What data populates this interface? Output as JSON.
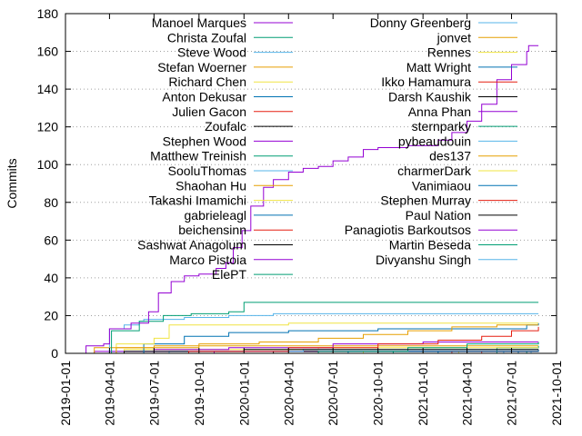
{
  "chart_data": {
    "type": "line",
    "title": "",
    "xlabel": "",
    "ylabel": "Commits",
    "xlim": [
      "2019-01-01",
      "2021-10-01"
    ],
    "ylim": [
      0,
      180
    ],
    "yticks": [
      0,
      20,
      40,
      60,
      80,
      100,
      120,
      140,
      160,
      180
    ],
    "xticks": [
      "2019-01-01",
      "2019-04-01",
      "2019-07-01",
      "2019-10-01",
      "2020-01-01",
      "2020-04-01",
      "2020-07-01",
      "2020-10-01",
      "2021-01-01",
      "2021-04-01",
      "2021-07-01",
      "2021-10-01"
    ],
    "grid": "horizontal dotted",
    "legend_position": "top (two columns)",
    "series": [
      {
        "name": "Manoel Marques",
        "color": "#9400d3",
        "points": [
          [
            "2019-02-01",
            0
          ],
          [
            "2019-02-12",
            4
          ],
          [
            "2019-03-20",
            5
          ],
          [
            "2019-04-01",
            13
          ],
          [
            "2019-05-15",
            16
          ],
          [
            "2019-06-20",
            22
          ],
          [
            "2019-07-10",
            32
          ],
          [
            "2019-08-05",
            38
          ],
          [
            "2019-09-01",
            41
          ],
          [
            "2019-10-01",
            42
          ],
          [
            "2019-11-05",
            45
          ],
          [
            "2019-11-25",
            48
          ],
          [
            "2019-12-10",
            56
          ],
          [
            "2019-12-28",
            65
          ],
          [
            "2020-01-15",
            78
          ],
          [
            "2020-02-10",
            88
          ],
          [
            "2020-03-01",
            92
          ],
          [
            "2020-04-01",
            96
          ],
          [
            "2020-05-01",
            98
          ],
          [
            "2020-06-01",
            99
          ],
          [
            "2020-07-01",
            102
          ],
          [
            "2020-08-01",
            104
          ],
          [
            "2020-09-01",
            108
          ],
          [
            "2020-10-01",
            109
          ],
          [
            "2020-12-01",
            110
          ],
          [
            "2021-02-01",
            113
          ],
          [
            "2021-03-01",
            117
          ],
          [
            "2021-04-01",
            123
          ],
          [
            "2021-05-01",
            132
          ],
          [
            "2021-06-01",
            145
          ],
          [
            "2021-07-01",
            153
          ],
          [
            "2021-08-01",
            160
          ],
          [
            "2021-08-05",
            163
          ],
          [
            "2021-08-25",
            163
          ]
        ]
      },
      {
        "name": "Christa Zoufal",
        "color": "#009e73",
        "points": [
          [
            "2019-04-05",
            0
          ],
          [
            "2019-04-05",
            12
          ],
          [
            "2019-06-01",
            17
          ],
          [
            "2019-07-20",
            20
          ],
          [
            "2019-09-15",
            21
          ],
          [
            "2019-12-01",
            22
          ],
          [
            "2020-01-01",
            27
          ],
          [
            "2021-08-25",
            27
          ]
        ]
      },
      {
        "name": "Steve Wood",
        "color": "#56b4e9",
        "points": [
          [
            "2019-04-01",
            0
          ],
          [
            "2019-04-01",
            13
          ],
          [
            "2019-05-01",
            15
          ],
          [
            "2019-06-01",
            17
          ],
          [
            "2019-06-10",
            18
          ],
          [
            "2019-09-01",
            19
          ],
          [
            "2019-12-01",
            20
          ],
          [
            "2020-03-01",
            21
          ],
          [
            "2020-05-01",
            21
          ],
          [
            "2021-08-25",
            21
          ]
        ]
      },
      {
        "name": "Stefan Woerner",
        "color": "#e69f00",
        "points": [
          [
            "2019-04-01",
            0
          ],
          [
            "2019-04-15",
            3
          ],
          [
            "2019-10-01",
            5
          ],
          [
            "2020-02-01",
            6
          ],
          [
            "2020-06-01",
            8
          ],
          [
            "2020-09-01",
            10
          ],
          [
            "2020-12-01",
            12
          ],
          [
            "2021-03-01",
            14
          ],
          [
            "2021-06-01",
            15
          ],
          [
            "2021-08-25",
            15
          ]
        ]
      },
      {
        "name": "Richard Chen",
        "color": "#f0e442",
        "points": [
          [
            "2019-04-01",
            0
          ],
          [
            "2019-04-15",
            5
          ],
          [
            "2019-07-01",
            8
          ],
          [
            "2019-08-01",
            15
          ],
          [
            "2019-12-01",
            15
          ],
          [
            "2020-04-01",
            16
          ],
          [
            "2021-08-25",
            16
          ]
        ]
      },
      {
        "name": "Anton Dekusar",
        "color": "#0072b2",
        "points": [
          [
            "2019-06-01",
            0
          ],
          [
            "2019-06-10",
            5
          ],
          [
            "2019-09-01",
            9
          ],
          [
            "2019-12-01",
            11
          ],
          [
            "2020-04-01",
            12
          ],
          [
            "2020-10-01",
            13
          ],
          [
            "2021-03-01",
            13
          ],
          [
            "2021-08-01",
            15
          ],
          [
            "2021-08-25",
            16
          ]
        ]
      },
      {
        "name": "Julien Gacon",
        "color": "#e51e10",
        "points": [
          [
            "2019-09-01",
            0
          ],
          [
            "2019-09-10",
            1
          ],
          [
            "2020-04-01",
            3
          ],
          [
            "2020-10-01",
            5
          ],
          [
            "2021-02-01",
            7
          ],
          [
            "2021-05-01",
            9
          ],
          [
            "2021-07-01",
            12
          ],
          [
            "2021-08-25",
            14
          ]
        ]
      },
      {
        "name": "Zoufalc",
        "color": "#000000",
        "points": [
          [
            "2019-05-01",
            0
          ],
          [
            "2019-05-01",
            1
          ],
          [
            "2020-01-01",
            2
          ],
          [
            "2021-08-25",
            2
          ]
        ]
      },
      {
        "name": "Stephen Wood",
        "color": "#9400d3",
        "points": [
          [
            "2019-07-01",
            0
          ],
          [
            "2019-07-01",
            2
          ],
          [
            "2019-12-01",
            3
          ],
          [
            "2020-07-01",
            5
          ],
          [
            "2021-01-01",
            6
          ],
          [
            "2021-08-25",
            6
          ]
        ]
      },
      {
        "name": "Matthew Treinish",
        "color": "#009e73",
        "points": [
          [
            "2020-06-01",
            0
          ],
          [
            "2020-06-01",
            1
          ],
          [
            "2020-12-01",
            3
          ],
          [
            "2021-04-01",
            5
          ],
          [
            "2021-08-25",
            6
          ]
        ]
      },
      {
        "name": "SooluThomas",
        "color": "#56b4e9",
        "points": [
          [
            "2019-08-01",
            0
          ],
          [
            "2019-08-01",
            1
          ],
          [
            "2020-05-01",
            2
          ],
          [
            "2021-08-25",
            2
          ]
        ]
      },
      {
        "name": "Shaohan Hu",
        "color": "#e69f00",
        "points": [
          [
            "2019-03-01",
            0
          ],
          [
            "2019-03-01",
            3
          ],
          [
            "2019-07-01",
            4
          ],
          [
            "2021-08-25",
            4
          ]
        ]
      },
      {
        "name": "Takashi Imamichi",
        "color": "#f0e442",
        "points": [
          [
            "2019-05-01",
            0
          ],
          [
            "2019-05-01",
            2
          ],
          [
            "2020-06-01",
            3
          ],
          [
            "2021-08-25",
            3
          ]
        ]
      },
      {
        "name": "gabrieleagl",
        "color": "#0072b2",
        "points": [
          [
            "2020-08-01",
            0
          ],
          [
            "2020-08-01",
            1
          ],
          [
            "2021-08-25",
            2
          ]
        ]
      },
      {
        "name": "beichensinn",
        "color": "#e51e10",
        "points": [
          [
            "2021-03-01",
            0
          ],
          [
            "2021-03-01",
            1
          ],
          [
            "2021-08-25",
            2
          ]
        ]
      },
      {
        "name": "Sashwat Anagolum",
        "color": "#000000",
        "points": [
          [
            "2020-03-01",
            0
          ],
          [
            "2020-03-01",
            1
          ],
          [
            "2021-08-25",
            1
          ]
        ]
      },
      {
        "name": "Marco Pistoia",
        "color": "#9400d3",
        "points": [
          [
            "2019-03-01",
            0
          ],
          [
            "2019-03-01",
            1
          ],
          [
            "2021-08-25",
            1
          ]
        ]
      },
      {
        "name": "ElePT",
        "color": "#009e73",
        "points": [
          [
            "2021-06-01",
            0
          ],
          [
            "2021-06-01",
            3
          ],
          [
            "2021-08-25",
            4
          ]
        ]
      },
      {
        "name": "Donny Greenberg",
        "color": "#56b4e9",
        "points": [
          [
            "2019-04-01",
            0
          ],
          [
            "2019-04-01",
            1
          ],
          [
            "2021-08-25",
            1
          ]
        ]
      },
      {
        "name": "jonvet",
        "color": "#e69f00",
        "points": [
          [
            "2021-01-01",
            0
          ],
          [
            "2021-01-01",
            1
          ],
          [
            "2021-08-25",
            1
          ]
        ]
      },
      {
        "name": "Rennes",
        "color": "#f0e442",
        "points": [
          [
            "2020-09-01",
            0
          ],
          [
            "2020-09-01",
            1
          ],
          [
            "2021-08-25",
            1
          ]
        ]
      },
      {
        "name": "Matt Wright",
        "color": "#0072b2",
        "points": [
          [
            "2021-02-01",
            0
          ],
          [
            "2021-02-01",
            1
          ],
          [
            "2021-08-25",
            1
          ]
        ]
      },
      {
        "name": "Ikko Hamamura",
        "color": "#e51e10",
        "points": [
          [
            "2021-05-01",
            0
          ],
          [
            "2021-05-01",
            1
          ],
          [
            "2021-08-25",
            1
          ]
        ]
      },
      {
        "name": "Darsh Kaushik",
        "color": "#000000",
        "points": [
          [
            "2021-04-01",
            0
          ],
          [
            "2021-04-01",
            1
          ],
          [
            "2021-08-25",
            1
          ]
        ]
      },
      {
        "name": "Anna Phan",
        "color": "#9400d3",
        "points": [
          [
            "2019-11-01",
            0
          ],
          [
            "2019-11-01",
            1
          ],
          [
            "2021-08-25",
            1
          ]
        ]
      },
      {
        "name": "sternparky",
        "color": "#009e73",
        "points": [
          [
            "2020-11-01",
            0
          ],
          [
            "2020-11-01",
            1
          ],
          [
            "2021-08-25",
            1
          ]
        ]
      },
      {
        "name": "pybeaudouin",
        "color": "#56b4e9",
        "points": [
          [
            "2021-06-15",
            0
          ],
          [
            "2021-06-15",
            1
          ],
          [
            "2021-08-25",
            1
          ]
        ]
      },
      {
        "name": "des137",
        "color": "#e69f00",
        "points": [
          [
            "2021-07-01",
            0
          ],
          [
            "2021-07-01",
            1
          ],
          [
            "2021-08-25",
            1
          ]
        ]
      },
      {
        "name": "charmerDark",
        "color": "#f0e442",
        "points": [
          [
            "2021-03-15",
            0
          ],
          [
            "2021-03-15",
            1
          ],
          [
            "2021-08-25",
            1
          ]
        ]
      },
      {
        "name": "Vanimiaou",
        "color": "#0072b2",
        "points": [
          [
            "2021-07-15",
            0
          ],
          [
            "2021-07-15",
            1
          ],
          [
            "2021-08-25",
            1
          ]
        ]
      },
      {
        "name": "Stephen Murray",
        "color": "#e51e10",
        "points": [
          [
            "2020-07-01",
            0
          ],
          [
            "2020-07-01",
            1
          ],
          [
            "2021-08-25",
            1
          ]
        ]
      },
      {
        "name": "Paul Nation",
        "color": "#000000",
        "points": [
          [
            "2020-10-01",
            0
          ],
          [
            "2020-10-01",
            1
          ],
          [
            "2021-08-25",
            1
          ]
        ]
      },
      {
        "name": "Panagiotis Barkoutsos",
        "color": "#9400d3",
        "points": [
          [
            "2019-08-01",
            0
          ],
          [
            "2019-08-01",
            1
          ],
          [
            "2021-08-25",
            1
          ]
        ]
      },
      {
        "name": "Martin Beseda",
        "color": "#009e73",
        "points": [
          [
            "2021-08-01",
            0
          ],
          [
            "2021-08-01",
            1
          ],
          [
            "2021-08-25",
            1
          ]
        ]
      },
      {
        "name": "Divyanshu Singh",
        "color": "#56b4e9",
        "points": [
          [
            "2021-08-10",
            0
          ],
          [
            "2021-08-10",
            1
          ],
          [
            "2021-08-25",
            1
          ]
        ]
      }
    ]
  }
}
